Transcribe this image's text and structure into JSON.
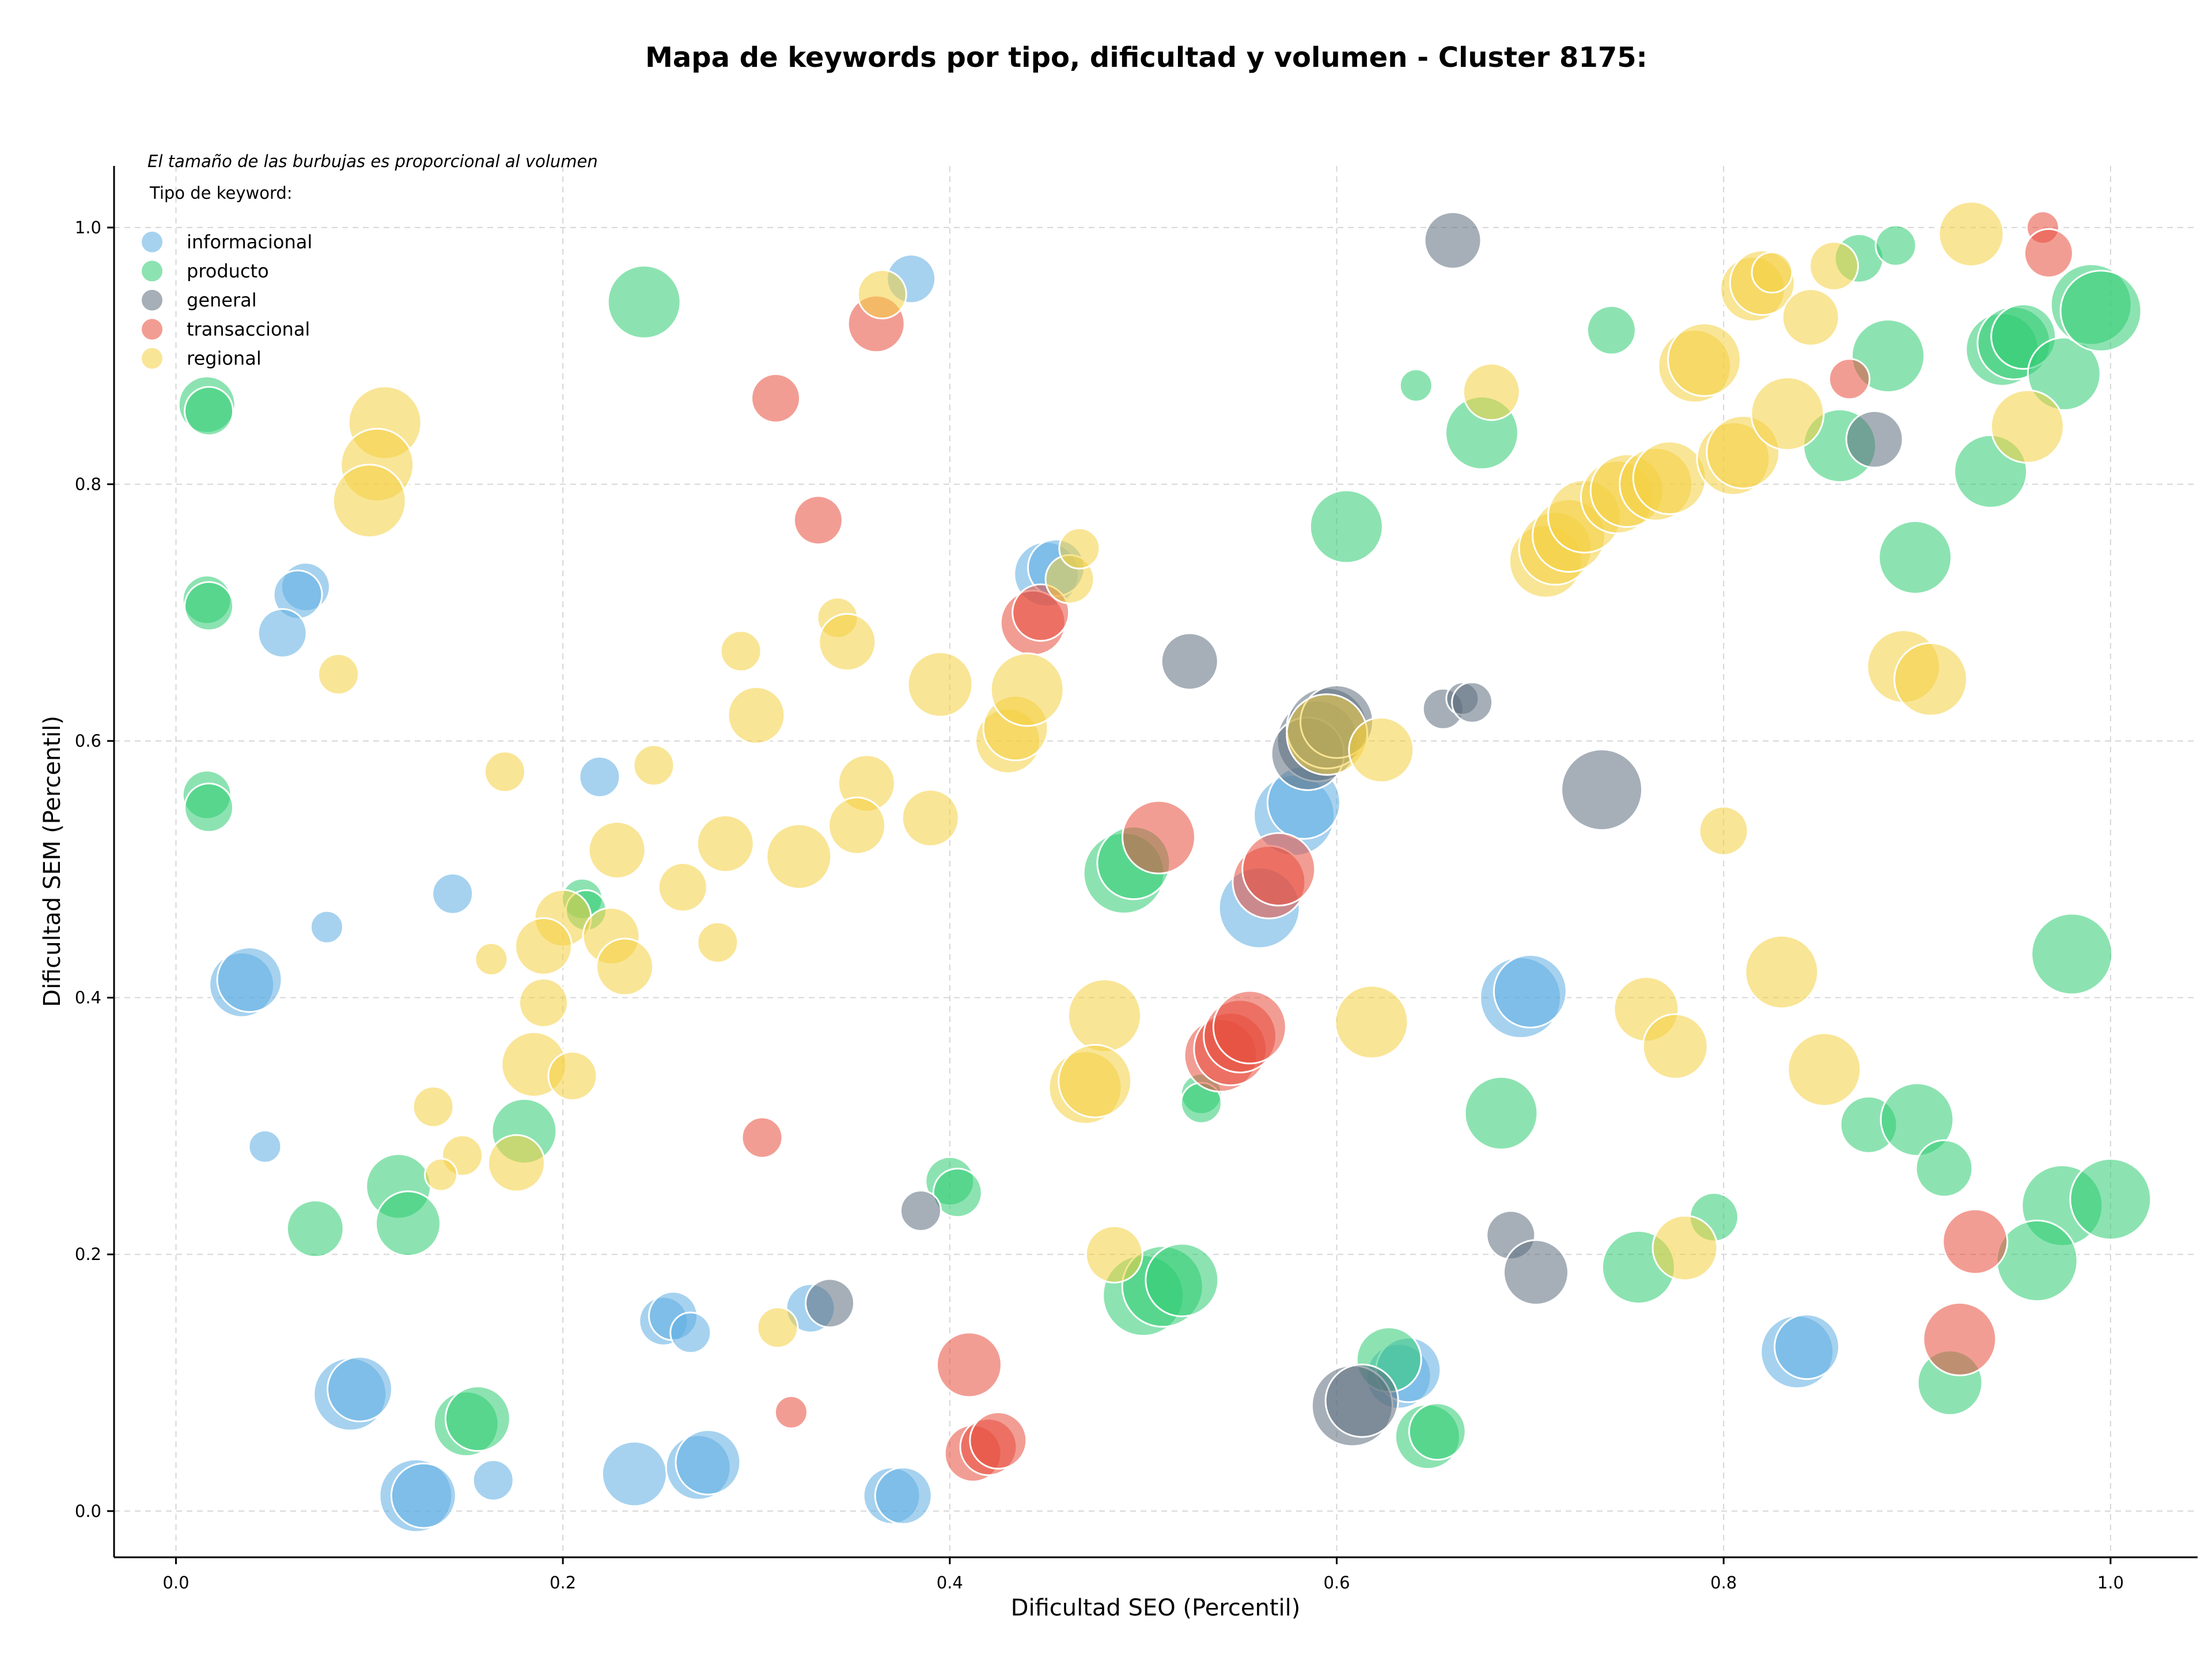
{
  "chart_data": {
    "type": "scatter",
    "title": "Mapa de keywords por tipo, dificultad y volumen - Cluster 8175:",
    "xlabel": "Dificultad SEO (Percentil)",
    "ylabel": "Dificultad SEM (Percentil)",
    "xlim": [
      -0.032,
      1.045
    ],
    "ylim": [
      -0.036,
      1.048
    ],
    "xticks": [
      0.0,
      0.2,
      0.4,
      0.6,
      0.8,
      1.0
    ],
    "yticks": [
      0.0,
      0.2,
      0.4,
      0.6,
      0.8,
      1.0
    ],
    "xtick_labels": [
      "0.0",
      "0.2",
      "0.4",
      "0.6",
      "0.8",
      "1.0"
    ],
    "ytick_labels": [
      "0.0",
      "0.2",
      "0.4",
      "0.6",
      "0.8",
      "1.0"
    ],
    "grid": true,
    "annotation": "El tamaño de las burbujas es proporcional al volumen",
    "legend_title": "Tipo de keyword:",
    "legend_position": "top-left",
    "size_encoding": "volume (relative 1-10)",
    "series": [
      {
        "name": "informacional",
        "color": "#5dade2",
        "points": [
          [
            0.38,
            0.96,
            4
          ],
          [
            0.067,
            0.72,
            4
          ],
          [
            0.063,
            0.714,
            4
          ],
          [
            0.055,
            0.684,
            4
          ],
          [
            0.034,
            0.41,
            6
          ],
          [
            0.038,
            0.414,
            6
          ],
          [
            0.078,
            0.455,
            2
          ],
          [
            0.143,
            0.481,
            3
          ],
          [
            0.219,
            0.572,
            3
          ],
          [
            0.046,
            0.284,
            2
          ],
          [
            0.09,
            0.091,
            7
          ],
          [
            0.095,
            0.095,
            6
          ],
          [
            0.124,
            0.012,
            7
          ],
          [
            0.128,
            0.012,
            6
          ],
          [
            0.164,
            0.024,
            3
          ],
          [
            0.237,
            0.029,
            6
          ],
          [
            0.252,
            0.148,
            4
          ],
          [
            0.257,
            0.152,
            4
          ],
          [
            0.266,
            0.139,
            3
          ],
          [
            0.27,
            0.034,
            6
          ],
          [
            0.275,
            0.038,
            6
          ],
          [
            0.328,
            0.158,
            4
          ],
          [
            0.37,
            0.012,
            5
          ],
          [
            0.376,
            0.012,
            5
          ],
          [
            0.45,
            0.73,
            6
          ],
          [
            0.455,
            0.735,
            5
          ],
          [
            0.56,
            0.47,
            8
          ],
          [
            0.578,
            0.542,
            8
          ],
          [
            0.583,
            0.552,
            7
          ],
          [
            0.695,
            0.4,
            8
          ],
          [
            0.7,
            0.405,
            7
          ],
          [
            0.632,
            0.105,
            6
          ],
          [
            0.637,
            0.11,
            6
          ],
          [
            0.838,
            0.124,
            7
          ],
          [
            0.843,
            0.128,
            6
          ]
        ]
      },
      {
        "name": "producto",
        "color": "#2ecc71",
        "points": [
          [
            0.242,
            0.942,
            7
          ],
          [
            0.016,
            0.862,
            5
          ],
          [
            0.017,
            0.857,
            4
          ],
          [
            0.016,
            0.71,
            4
          ],
          [
            0.017,
            0.705,
            4
          ],
          [
            0.016,
            0.558,
            4
          ],
          [
            0.017,
            0.548,
            4
          ],
          [
            0.18,
            0.296,
            6
          ],
          [
            0.115,
            0.253,
            6
          ],
          [
            0.12,
            0.224,
            6
          ],
          [
            0.072,
            0.22,
            5
          ],
          [
            0.21,
            0.477,
            3
          ],
          [
            0.212,
            0.468,
            3
          ],
          [
            0.4,
            0.257,
            4
          ],
          [
            0.404,
            0.248,
            4
          ],
          [
            0.15,
            0.068,
            6
          ],
          [
            0.156,
            0.072,
            6
          ],
          [
            0.49,
            0.497,
            8
          ],
          [
            0.495,
            0.505,
            7
          ],
          [
            0.5,
            0.168,
            8
          ],
          [
            0.51,
            0.175,
            8
          ],
          [
            0.52,
            0.18,
            7
          ],
          [
            0.53,
            0.325,
            3
          ],
          [
            0.53,
            0.318,
            3
          ],
          [
            0.605,
            0.767,
            7
          ],
          [
            0.627,
            0.118,
            6
          ],
          [
            0.647,
            0.058,
            6
          ],
          [
            0.652,
            0.062,
            5
          ],
          [
            0.641,
            0.877,
            2
          ],
          [
            0.675,
            0.84,
            7
          ],
          [
            0.685,
            0.31,
            7
          ],
          [
            0.742,
            0.92,
            4
          ],
          [
            0.756,
            0.19,
            7
          ],
          [
            0.795,
            0.229,
            4
          ],
          [
            0.87,
            0.976,
            4
          ],
          [
            0.889,
            0.986,
            3
          ],
          [
            0.86,
            0.83,
            7
          ],
          [
            0.885,
            0.9,
            7
          ],
          [
            0.938,
            0.81,
            7
          ],
          [
            0.944,
            0.905,
            7
          ],
          [
            0.95,
            0.91,
            7
          ],
          [
            0.955,
            0.915,
            6
          ],
          [
            0.976,
            0.886,
            7
          ],
          [
            0.99,
            0.94,
            8
          ],
          [
            0.995,
            0.935,
            8
          ],
          [
            0.899,
            0.743,
            7
          ],
          [
            0.875,
            0.301,
            5
          ],
          [
            0.9,
            0.305,
            7
          ],
          [
            0.914,
            0.267,
            5
          ],
          [
            0.98,
            0.434,
            8
          ],
          [
            0.975,
            0.238,
            8
          ],
          [
            1.0,
            0.243,
            8
          ],
          [
            0.962,
            0.195,
            8
          ],
          [
            0.917,
            0.1,
            6
          ]
        ]
      },
      {
        "name": "general",
        "color": "#5d6d7e",
        "points": [
          [
            0.66,
            0.99,
            5
          ],
          [
            0.524,
            0.662,
            5
          ],
          [
            0.59,
            0.6,
            8
          ],
          [
            0.585,
            0.59,
            7
          ],
          [
            0.595,
            0.61,
            8
          ],
          [
            0.6,
            0.615,
            7
          ],
          [
            0.655,
            0.625,
            3
          ],
          [
            0.665,
            0.633,
            2
          ],
          [
            0.67,
            0.63,
            3
          ],
          [
            0.737,
            0.562,
            8
          ],
          [
            0.878,
            0.835,
            5
          ],
          [
            0.385,
            0.234,
            3
          ],
          [
            0.338,
            0.162,
            4
          ],
          [
            0.69,
            0.215,
            4
          ],
          [
            0.703,
            0.186,
            6
          ],
          [
            0.608,
            0.082,
            8
          ],
          [
            0.613,
            0.086,
            7
          ]
        ]
      },
      {
        "name": "transaccional",
        "color": "#e74c3c",
        "points": [
          [
            0.362,
            0.925,
            5
          ],
          [
            0.31,
            0.867,
            4
          ],
          [
            0.332,
            0.772,
            4
          ],
          [
            0.443,
            0.692,
            6
          ],
          [
            0.447,
            0.7,
            5
          ],
          [
            0.508,
            0.525,
            7
          ],
          [
            0.565,
            0.49,
            7
          ],
          [
            0.57,
            0.5,
            7
          ],
          [
            0.54,
            0.355,
            7
          ],
          [
            0.545,
            0.36,
            7
          ],
          [
            0.55,
            0.37,
            7
          ],
          [
            0.555,
            0.377,
            7
          ],
          [
            0.303,
            0.291,
            3
          ],
          [
            0.41,
            0.114,
            6
          ],
          [
            0.412,
            0.045,
            5
          ],
          [
            0.42,
            0.05,
            5
          ],
          [
            0.425,
            0.055,
            5
          ],
          [
            0.318,
            0.077,
            2
          ],
          [
            0.865,
            0.882,
            3
          ],
          [
            0.965,
            1.0,
            2
          ],
          [
            0.968,
            0.98,
            4
          ],
          [
            0.93,
            0.21,
            6
          ],
          [
            0.922,
            0.134,
            7
          ]
        ]
      },
      {
        "name": "regional",
        "color": "#f4d03f",
        "points": [
          [
            0.365,
            0.948,
            4
          ],
          [
            0.108,
            0.848,
            7
          ],
          [
            0.104,
            0.815,
            7
          ],
          [
            0.1,
            0.787,
            7
          ],
          [
            0.084,
            0.652,
            3
          ],
          [
            0.17,
            0.576,
            3
          ],
          [
            0.163,
            0.43,
            2
          ],
          [
            0.2,
            0.462,
            5
          ],
          [
            0.19,
            0.44,
            5
          ],
          [
            0.225,
            0.448,
            5
          ],
          [
            0.232,
            0.424,
            5
          ],
          [
            0.228,
            0.515,
            5
          ],
          [
            0.247,
            0.581,
            3
          ],
          [
            0.262,
            0.486,
            4
          ],
          [
            0.284,
            0.52,
            5
          ],
          [
            0.28,
            0.443,
            3
          ],
          [
            0.292,
            0.67,
            3
          ],
          [
            0.3,
            0.62,
            5
          ],
          [
            0.322,
            0.51,
            6
          ],
          [
            0.342,
            0.696,
            3
          ],
          [
            0.347,
            0.677,
            5
          ],
          [
            0.357,
            0.567,
            5
          ],
          [
            0.352,
            0.534,
            5
          ],
          [
            0.39,
            0.54,
            5
          ],
          [
            0.395,
            0.644,
            6
          ],
          [
            0.43,
            0.6,
            6
          ],
          [
            0.434,
            0.61,
            6
          ],
          [
            0.44,
            0.64,
            7
          ],
          [
            0.462,
            0.726,
            4
          ],
          [
            0.467,
            0.75,
            3
          ],
          [
            0.19,
            0.396,
            4
          ],
          [
            0.185,
            0.348,
            6
          ],
          [
            0.205,
            0.339,
            4
          ],
          [
            0.133,
            0.315,
            3
          ],
          [
            0.148,
            0.277,
            3
          ],
          [
            0.137,
            0.262,
            2
          ],
          [
            0.176,
            0.271,
            5
          ],
          [
            0.311,
            0.143,
            3
          ],
          [
            0.48,
            0.386,
            7
          ],
          [
            0.47,
            0.33,
            7
          ],
          [
            0.475,
            0.335,
            7
          ],
          [
            0.485,
            0.2,
            5
          ],
          [
            0.595,
            0.605,
            8
          ],
          [
            0.623,
            0.593,
            6
          ],
          [
            0.618,
            0.381,
            7
          ],
          [
            0.68,
            0.872,
            5
          ],
          [
            0.708,
            0.74,
            7
          ],
          [
            0.713,
            0.75,
            7
          ],
          [
            0.72,
            0.76,
            7
          ],
          [
            0.728,
            0.775,
            7
          ],
          [
            0.745,
            0.79,
            7
          ],
          [
            0.75,
            0.795,
            7
          ],
          [
            0.765,
            0.8,
            7
          ],
          [
            0.772,
            0.805,
            7
          ],
          [
            0.785,
            0.892,
            7
          ],
          [
            0.79,
            0.897,
            7
          ],
          [
            0.76,
            0.391,
            6
          ],
          [
            0.775,
            0.362,
            6
          ],
          [
            0.8,
            0.53,
            4
          ],
          [
            0.78,
            0.205,
            6
          ],
          [
            0.805,
            0.82,
            7
          ],
          [
            0.81,
            0.825,
            7
          ],
          [
            0.815,
            0.952,
            6
          ],
          [
            0.82,
            0.957,
            6
          ],
          [
            0.825,
            0.965,
            3
          ],
          [
            0.833,
            0.855,
            7
          ],
          [
            0.83,
            0.42,
            7
          ],
          [
            0.852,
            0.344,
            7
          ],
          [
            0.845,
            0.93,
            5
          ],
          [
            0.857,
            0.97,
            4
          ],
          [
            0.893,
            0.658,
            7
          ],
          [
            0.907,
            0.648,
            7
          ],
          [
            0.928,
            0.995,
            6
          ],
          [
            0.957,
            0.845,
            7
          ]
        ]
      }
    ]
  }
}
